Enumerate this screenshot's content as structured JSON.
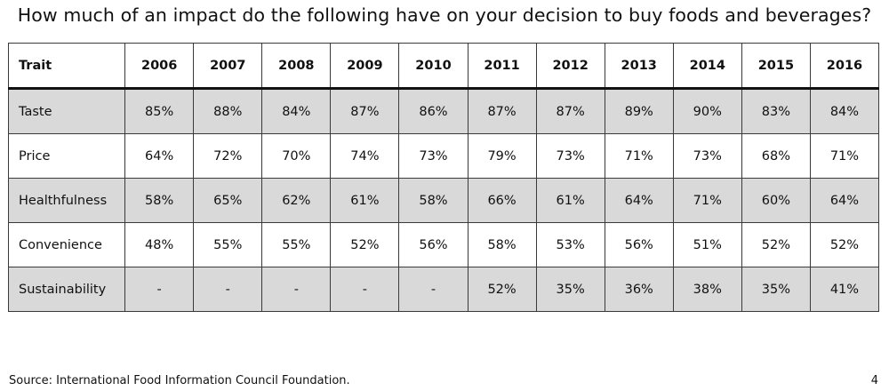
{
  "title": "How much of an impact do the following have on your decision to buy foods and beverages?",
  "table": {
    "trait_header": "Trait",
    "years": [
      "2006",
      "2007",
      "2008",
      "2009",
      "2010",
      "2011",
      "2012",
      "2013",
      "2014",
      "2015",
      "2016"
    ],
    "rows": [
      {
        "trait": "Taste",
        "values": [
          "85%",
          "88%",
          "84%",
          "87%",
          "86%",
          "87%",
          "87%",
          "89%",
          "90%",
          "83%",
          "84%"
        ]
      },
      {
        "trait": "Price",
        "values": [
          "64%",
          "72%",
          "70%",
          "74%",
          "73%",
          "79%",
          "73%",
          "71%",
          "73%",
          "68%",
          "71%"
        ]
      },
      {
        "trait": "Healthfulness",
        "values": [
          "58%",
          "65%",
          "62%",
          "61%",
          "58%",
          "66%",
          "61%",
          "64%",
          "71%",
          "60%",
          "64%"
        ]
      },
      {
        "trait": "Convenience",
        "values": [
          "48%",
          "55%",
          "55%",
          "52%",
          "56%",
          "58%",
          "53%",
          "56%",
          "51%",
          "52%",
          "52%"
        ]
      },
      {
        "trait": "Sustainability",
        "values": [
          "-",
          "-",
          "-",
          "-",
          "-",
          "52%",
          "35%",
          "36%",
          "38%",
          "35%",
          "41%"
        ]
      }
    ],
    "colors": {
      "shaded_row": "#d9d9d9",
      "plain_row": "#ffffff",
      "border": "#3a3a3a"
    }
  },
  "source": "Source: International Food Information Council Foundation.",
  "page_number": "4"
}
